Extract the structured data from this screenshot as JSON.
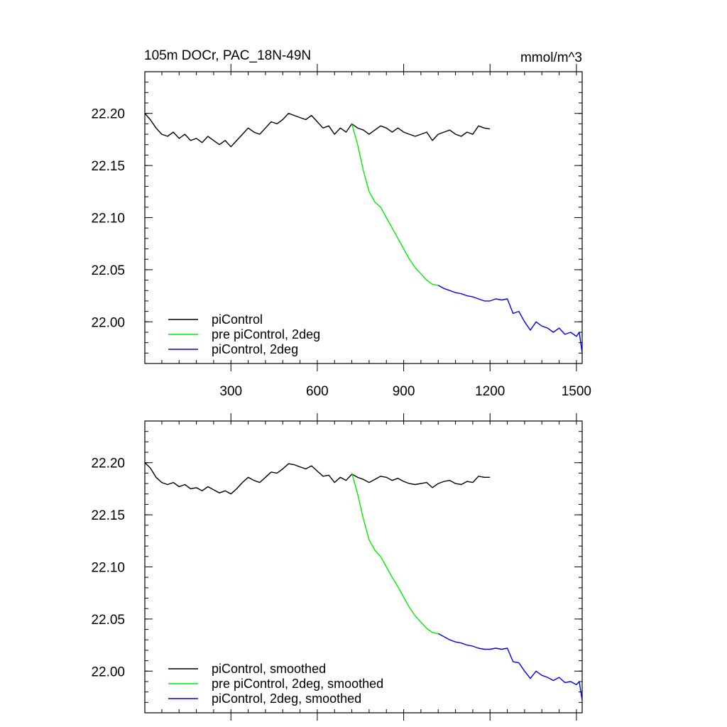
{
  "figure": {
    "title_left": "105m DOCr, PAC_18N-49N",
    "title_right": "mmol/m^3"
  },
  "chart_data": [
    {
      "type": "line",
      "title": "105m DOCr, PAC_18N-49N",
      "units": "mmol/m^3",
      "xlim": [
        1,
        1520
      ],
      "ylim": [
        21.96,
        22.24
      ],
      "x_ticks": [
        300,
        600,
        900,
        1200,
        1500
      ],
      "y_ticks": [
        22.0,
        22.05,
        22.1,
        22.15,
        22.2
      ],
      "grid": false,
      "legend_position": "bottom-left",
      "series": [
        {
          "name": "piControl",
          "color": "#000000",
          "x": [
            1,
            20,
            40,
            60,
            80,
            100,
            120,
            140,
            160,
            180,
            200,
            220,
            240,
            260,
            280,
            300,
            320,
            340,
            360,
            380,
            400,
            420,
            440,
            460,
            480,
            500,
            520,
            540,
            560,
            580,
            600,
            620,
            640,
            660,
            680,
            700,
            720,
            740,
            760,
            780,
            800,
            820,
            840,
            860,
            880,
            900,
            920,
            940,
            960,
            980,
            1000,
            1020,
            1040,
            1060,
            1080,
            1100,
            1120,
            1140,
            1160,
            1180,
            1200
          ],
          "y": [
            22.2,
            22.194,
            22.186,
            22.18,
            22.178,
            22.182,
            22.176,
            22.18,
            22.174,
            22.176,
            22.172,
            22.178,
            22.174,
            22.17,
            22.174,
            22.168,
            22.174,
            22.18,
            22.186,
            22.182,
            22.18,
            22.186,
            22.192,
            22.19,
            22.194,
            22.2,
            22.198,
            22.196,
            22.194,
            22.198,
            22.192,
            22.186,
            22.188,
            22.18,
            22.186,
            22.182,
            22.19,
            22.186,
            22.184,
            22.18,
            22.184,
            22.188,
            22.186,
            22.182,
            22.186,
            22.182,
            22.18,
            22.178,
            22.18,
            22.182,
            22.174,
            22.18,
            22.182,
            22.184,
            22.18,
            22.178,
            22.182,
            22.18,
            22.188,
            22.186,
            22.185
          ]
        },
        {
          "name": "pre piControl, 2deg",
          "color": "#00ee00",
          "x": [
            720,
            740,
            760,
            780,
            800,
            820,
            840,
            860,
            880,
            900,
            920,
            940,
            960,
            980,
            1000,
            1020
          ],
          "y": [
            22.19,
            22.17,
            22.145,
            22.125,
            22.115,
            22.11,
            22.1,
            22.09,
            22.08,
            22.07,
            22.06,
            22.052,
            22.046,
            22.04,
            22.036,
            22.035
          ]
        },
        {
          "name": "piControl, 2deg",
          "color": "#0000ee",
          "x": [
            1020,
            1040,
            1060,
            1080,
            1100,
            1120,
            1140,
            1160,
            1180,
            1200,
            1220,
            1240,
            1260,
            1280,
            1300,
            1320,
            1340,
            1360,
            1380,
            1400,
            1420,
            1440,
            1460,
            1480,
            1500,
            1510,
            1520
          ],
          "y": [
            22.035,
            22.032,
            22.03,
            22.028,
            22.027,
            22.025,
            22.024,
            22.022,
            22.02,
            22.02,
            22.022,
            22.021,
            22.022,
            22.008,
            22.01,
            22.0,
            21.992,
            22.0,
            21.996,
            21.994,
            21.99,
            21.994,
            21.988,
            21.99,
            21.986,
            21.99,
            21.97
          ]
        }
      ]
    },
    {
      "type": "line",
      "xlim": [
        1,
        1520
      ],
      "ylim": [
        21.96,
        22.24
      ],
      "x_ticks": [
        300,
        600,
        900,
        1200,
        1500
      ],
      "y_ticks": [
        22.0,
        22.05,
        22.1,
        22.15,
        22.2
      ],
      "grid": false,
      "legend_position": "bottom-left",
      "series": [
        {
          "name": "piControl, smoothed",
          "color": "#000000",
          "x": [
            1,
            20,
            40,
            60,
            80,
            100,
            120,
            140,
            160,
            180,
            200,
            220,
            240,
            260,
            280,
            300,
            320,
            340,
            360,
            380,
            400,
            420,
            440,
            460,
            480,
            500,
            520,
            540,
            560,
            580,
            600,
            620,
            640,
            660,
            680,
            700,
            720,
            740,
            760,
            780,
            800,
            820,
            840,
            860,
            880,
            900,
            920,
            940,
            960,
            980,
            1000,
            1020,
            1040,
            1060,
            1080,
            1100,
            1120,
            1140,
            1160,
            1180,
            1200
          ],
          "y": [
            22.2,
            22.195,
            22.186,
            22.181,
            22.179,
            22.181,
            22.177,
            22.179,
            22.175,
            22.176,
            22.173,
            22.177,
            22.174,
            22.171,
            22.173,
            22.17,
            22.175,
            22.181,
            22.186,
            22.183,
            22.181,
            22.186,
            22.191,
            22.19,
            22.194,
            22.199,
            22.198,
            22.196,
            22.194,
            22.197,
            22.192,
            22.187,
            22.188,
            22.181,
            22.186,
            22.183,
            22.189,
            22.186,
            22.184,
            22.181,
            22.184,
            22.187,
            22.186,
            22.183,
            22.185,
            22.182,
            22.18,
            22.179,
            22.18,
            22.181,
            22.176,
            22.18,
            22.182,
            22.183,
            22.18,
            22.179,
            22.182,
            22.181,
            22.187,
            22.186,
            22.186
          ]
        },
        {
          "name": "pre piControl, 2deg, smoothed",
          "color": "#00ee00",
          "x": [
            720,
            740,
            760,
            780,
            800,
            820,
            840,
            860,
            880,
            900,
            920,
            940,
            960,
            980,
            1000,
            1020
          ],
          "y": [
            22.19,
            22.17,
            22.146,
            22.126,
            22.116,
            22.11,
            22.1,
            22.09,
            22.081,
            22.071,
            22.061,
            22.053,
            22.047,
            22.041,
            22.037,
            22.036
          ]
        },
        {
          "name": "piControl, 2deg, smoothed",
          "color": "#0000ee",
          "x": [
            1020,
            1040,
            1060,
            1080,
            1100,
            1120,
            1140,
            1160,
            1180,
            1200,
            1220,
            1240,
            1260,
            1280,
            1300,
            1320,
            1340,
            1360,
            1380,
            1400,
            1420,
            1440,
            1460,
            1480,
            1500,
            1510,
            1520
          ],
          "y": [
            22.036,
            22.033,
            22.03,
            22.028,
            22.027,
            22.025,
            22.024,
            22.022,
            22.021,
            22.021,
            22.022,
            22.021,
            22.022,
            22.009,
            22.008,
            22.0,
            21.993,
            22.0,
            21.996,
            21.994,
            21.991,
            21.994,
            21.989,
            21.99,
            21.987,
            21.99,
            21.972
          ]
        }
      ]
    }
  ]
}
